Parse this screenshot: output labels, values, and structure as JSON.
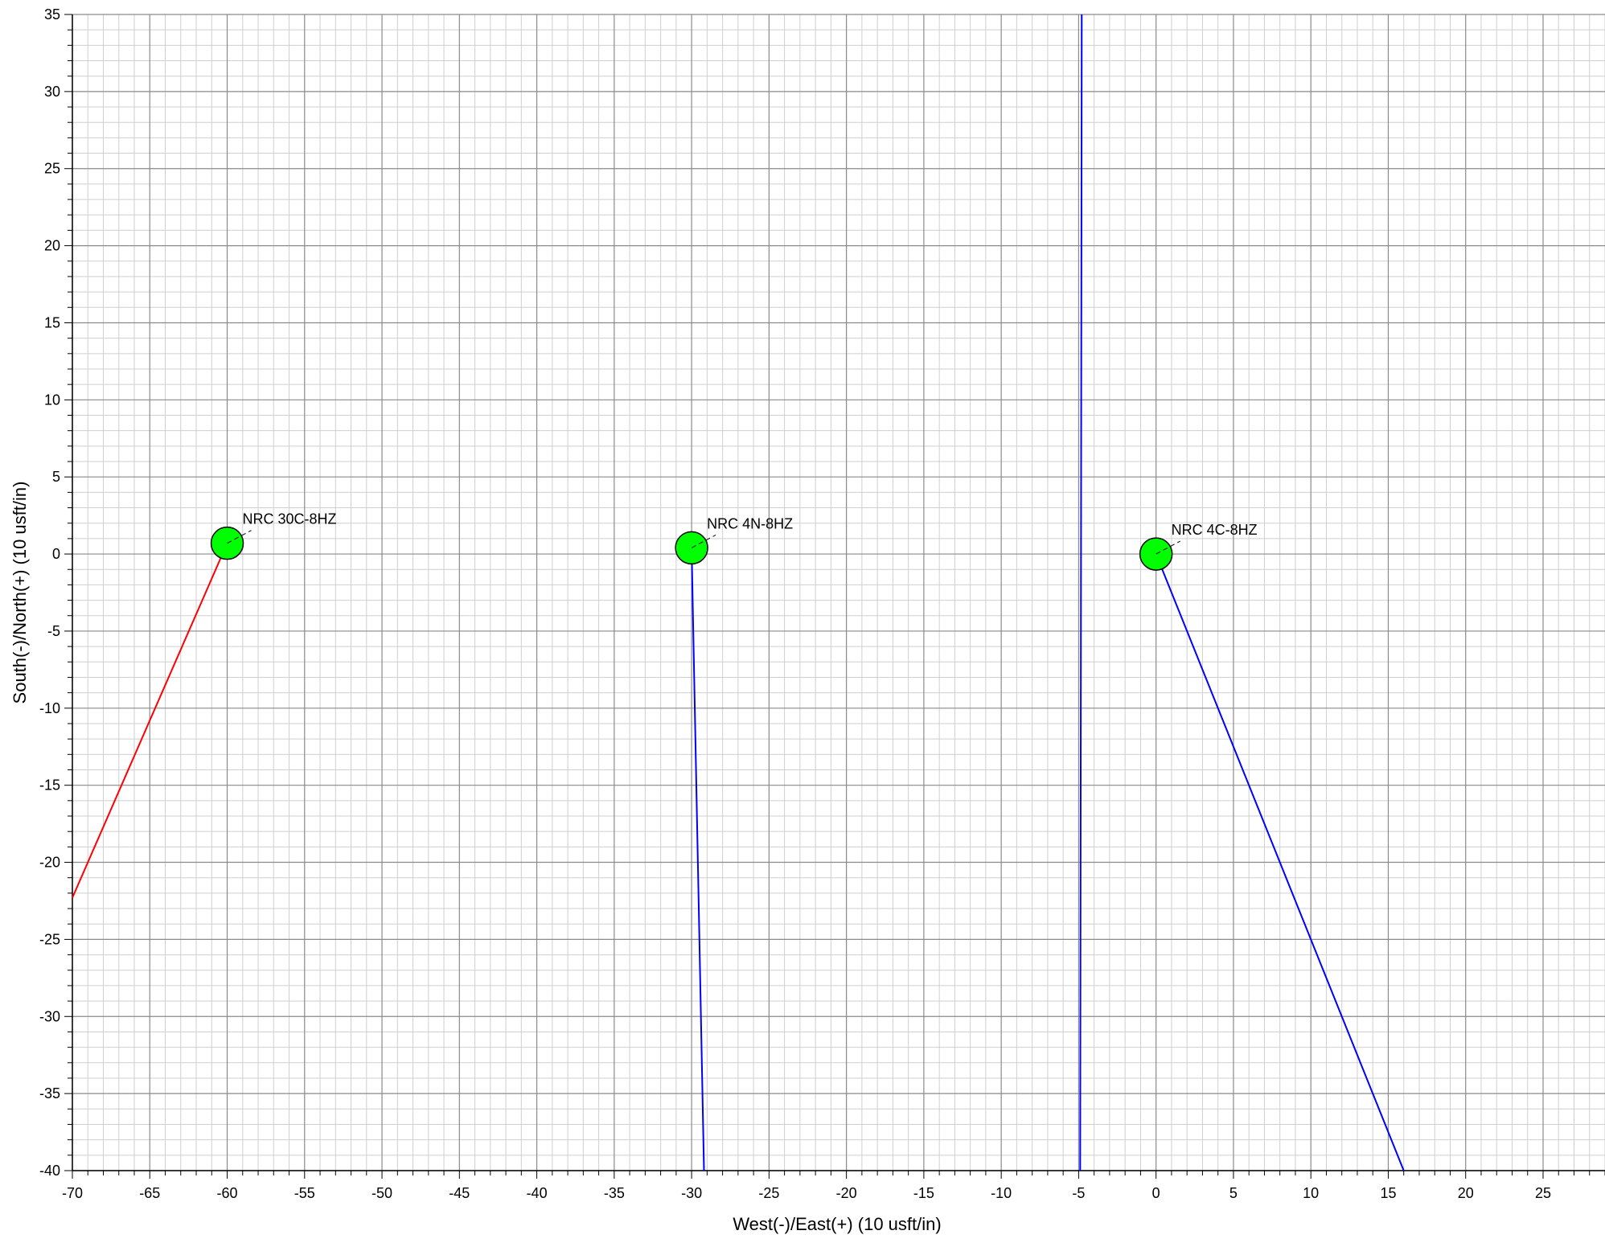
{
  "chart_data": {
    "type": "line",
    "xlabel": "West(-)/East(+) (10 usft/in)",
    "ylabel": "South(-)/North(+) (10 usft/in)",
    "xlim": [
      -70,
      29
    ],
    "ylim": [
      -40,
      35
    ],
    "x_ticks": [
      -70,
      -65,
      -60,
      -55,
      -50,
      -45,
      -40,
      -35,
      -30,
      -25,
      -20,
      -15,
      -10,
      -5,
      0,
      5,
      10,
      15,
      20,
      25
    ],
    "y_ticks": [
      35,
      30,
      25,
      20,
      15,
      10,
      5,
      0,
      -5,
      -10,
      -15,
      -20,
      -25,
      -30,
      -35,
      -40
    ],
    "grid": true,
    "series": [
      {
        "color": "#ff0000",
        "points": [
          [
            -60,
            0.7
          ],
          [
            -70,
            -22.3
          ]
        ]
      },
      {
        "color": "#0000ff",
        "points": [
          [
            -30,
            0.4
          ],
          [
            -29.2,
            -40
          ]
        ]
      },
      {
        "color": "#0000ff",
        "points": [
          [
            0,
            0
          ],
          [
            16,
            -40
          ]
        ]
      },
      {
        "color": "#0000ff",
        "points": [
          [
            -4.8,
            35
          ],
          [
            -4.9,
            -40
          ]
        ]
      }
    ],
    "wells": [
      {
        "name": "NRC 30C-8HZ",
        "x": -60,
        "y": 0.7,
        "color": "#00ff00"
      },
      {
        "name": "NRC 4N-8HZ",
        "x": -30,
        "y": 0.4,
        "color": "#00ff00"
      },
      {
        "name": "NRC 4C-8HZ",
        "x": 0,
        "y": 0,
        "color": "#00ff00"
      }
    ]
  }
}
